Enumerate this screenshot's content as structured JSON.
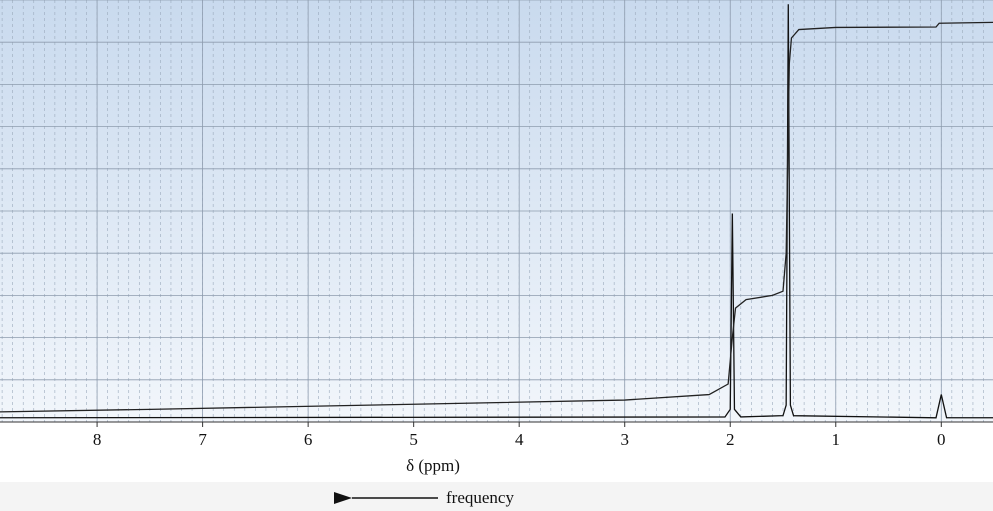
{
  "chart_data": {
    "type": "line",
    "x_label": "δ (ppm)",
    "annotation": "frequency",
    "xlim": [
      8.92,
      -0.49
    ],
    "xticks": [
      8,
      7,
      6,
      5,
      4,
      3,
      2,
      1,
      0
    ],
    "ylim": [
      0,
      10
    ],
    "yticks": [
      0,
      1,
      2,
      3,
      4,
      5,
      6,
      7,
      8,
      9,
      10
    ],
    "grid": true,
    "series": [
      {
        "name": "spectrum",
        "color": "#111111",
        "x": [
          8.92,
          2.05,
          2.0,
          1.98,
          1.96,
          1.9,
          1.5,
          1.47,
          1.45,
          1.43,
          1.4,
          0.05,
          0.0,
          -0.05,
          -0.49
        ],
        "values": [
          0.1,
          0.12,
          0.3,
          4.94,
          0.3,
          0.12,
          0.15,
          0.4,
          9.9,
          0.4,
          0.15,
          0.1,
          0.65,
          0.1,
          0.1
        ]
      },
      {
        "name": "integral",
        "color": "#222222",
        "x": [
          8.92,
          7.5,
          5,
          3,
          2.2,
          2.02,
          1.98,
          1.95,
          1.85,
          1.6,
          1.5,
          1.47,
          1.44,
          1.42,
          1.35,
          1.0,
          0.05,
          0.02,
          -0.49
        ],
        "values": [
          0.24,
          0.3,
          0.42,
          0.52,
          0.65,
          0.9,
          2.0,
          2.7,
          2.9,
          3.0,
          3.1,
          4.0,
          8.5,
          9.1,
          9.3,
          9.35,
          9.36,
          9.45,
          9.47
        ]
      }
    ]
  }
}
